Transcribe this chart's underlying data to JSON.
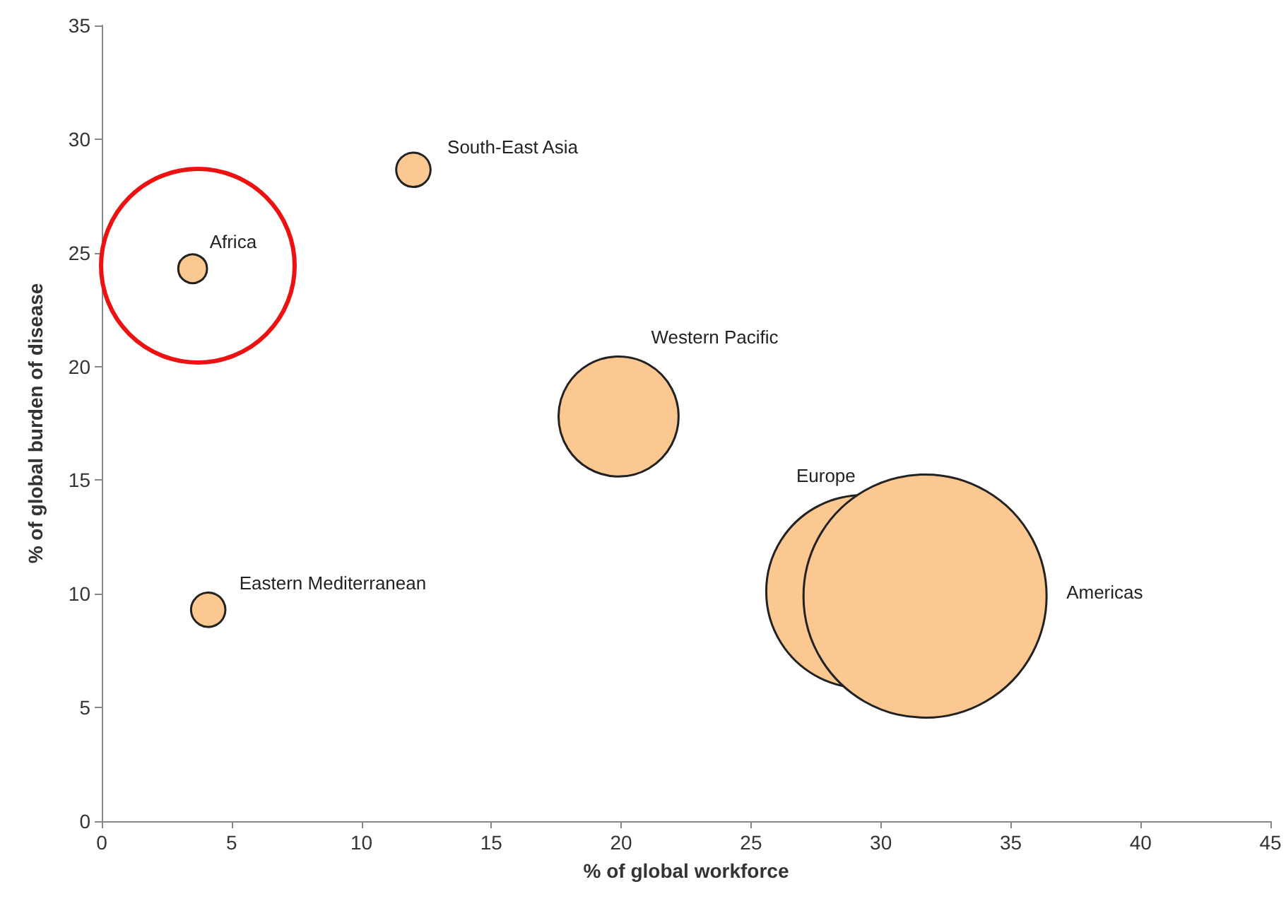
{
  "chart_data": {
    "type": "bubble",
    "xlabel": "% of global workforce",
    "ylabel": "% of global burden of disease",
    "series": [
      {
        "color": "#fcc892",
        "x": [
          3.5,
          12.0,
          4.1,
          19.9,
          29.3,
          31.7
        ],
        "values": [
          24.3,
          28.65,
          9.3,
          17.8,
          10.1,
          9.9
        ],
        "sizes": [
          0.014,
          0.02,
          0.02,
          0.244,
          0.63,
          1
        ]
      }
    ],
    "annotations": [
      "Africa",
      "South-East Asia",
      "Eastern Mediterranean",
      "Western Pacific",
      "Europe",
      "Americas"
    ],
    "xlim": [
      0,
      45
    ],
    "xticks": [
      0,
      5,
      10,
      15,
      20,
      25,
      30,
      35,
      40,
      45
    ],
    "ylim": [
      0,
      35
    ],
    "yticks": [
      0,
      5,
      10,
      15,
      20,
      25,
      30,
      35
    ],
    "grid": false
  }
}
